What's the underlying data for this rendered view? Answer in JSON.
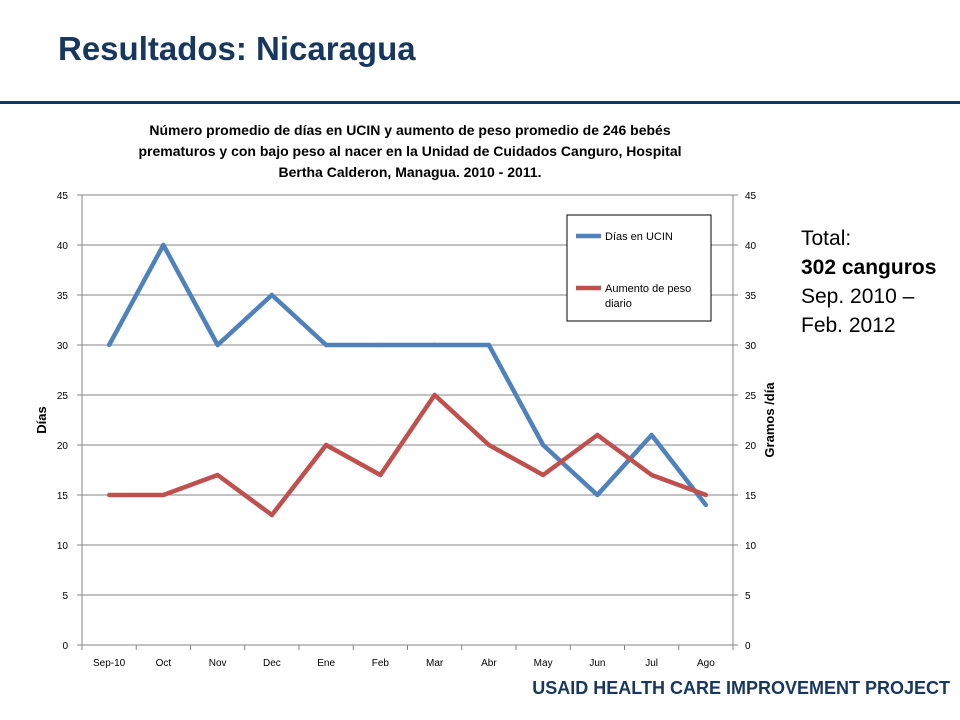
{
  "slide": {
    "title": "Resultados: Nicaragua",
    "footer": "USAID HEALTH CARE IMPROVEMENT PROJECT"
  },
  "side_note": {
    "line1": "Total:",
    "line2": "302 canguros",
    "line3": "Sep. 2010 –",
    "line4": "Feb. 2012"
  },
  "colors": {
    "brand": "#17375e",
    "series1": "#4f81bd",
    "series2": "#c0504d",
    "grid": "#868686"
  },
  "chart_data": {
    "type": "line",
    "title_lines": [
      "Número promedio de días en UCIN y aumento de peso promedio de 246 bebés",
      "prematuros y con bajo peso al nacer en la Unidad de Cuidados Canguro, Hospital",
      "Bertha Calderon, Managua. 2010 - 2011."
    ],
    "categories": [
      "Sep-10",
      "Oct",
      "Nov",
      "Dec",
      "Ene",
      "Feb",
      "Mar",
      "Abr",
      "May",
      "Jun",
      "Jul",
      "Ago"
    ],
    "series": [
      {
        "name": "Días en UCIN",
        "axis": "left",
        "values": [
          30,
          40,
          30,
          35,
          30,
          30,
          30,
          30,
          20,
          15,
          21,
          14
        ]
      },
      {
        "name": "Aumento de peso diario",
        "axis": "right",
        "values": [
          15,
          15,
          17,
          13,
          20,
          17,
          25,
          20,
          17,
          21,
          17,
          15
        ]
      }
    ],
    "ylabel": "Días",
    "y2label": "Gramos /día",
    "ylim": [
      0,
      45
    ],
    "y2lim": [
      0,
      45
    ],
    "yticks": [
      "0",
      "5",
      "10",
      "15",
      "20",
      "25",
      "30",
      "35",
      "40",
      "45"
    ],
    "y2ticks": [
      "0",
      "5",
      "10",
      "15",
      "20",
      "25",
      "30",
      "35",
      "40",
      "45"
    ],
    "grid": true,
    "legend_position": "top-right"
  }
}
